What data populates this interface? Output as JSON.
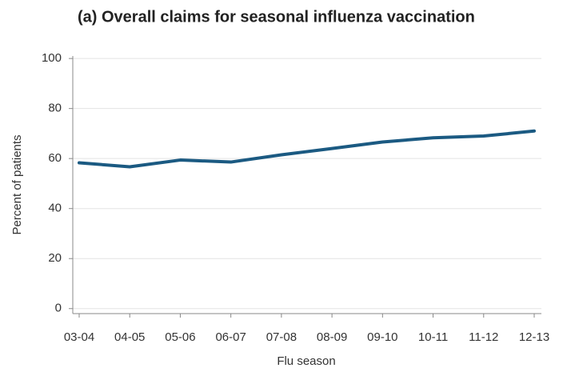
{
  "chart_data": {
    "type": "line",
    "title": "(a) Overall claims for seasonal influenza vaccination",
    "x_label": "Flu season",
    "y_label": "Percent of patients",
    "categories": [
      "03-04",
      "04-05",
      "05-06",
      "06-07",
      "07-08",
      "08-09",
      "09-10",
      "10-11",
      "11-12",
      "12-13"
    ],
    "series": [
      {
        "name": "Overall claims",
        "color": "#1b5a82",
        "values": [
          58.3,
          56.7,
          59.4,
          58.6,
          61.5,
          64.0,
          66.6,
          68.3,
          69.0,
          71.0
        ]
      }
    ],
    "ylim": [
      -2,
      101
    ],
    "yticks": [
      0,
      20,
      40,
      60,
      80,
      100
    ],
    "grid": true
  }
}
